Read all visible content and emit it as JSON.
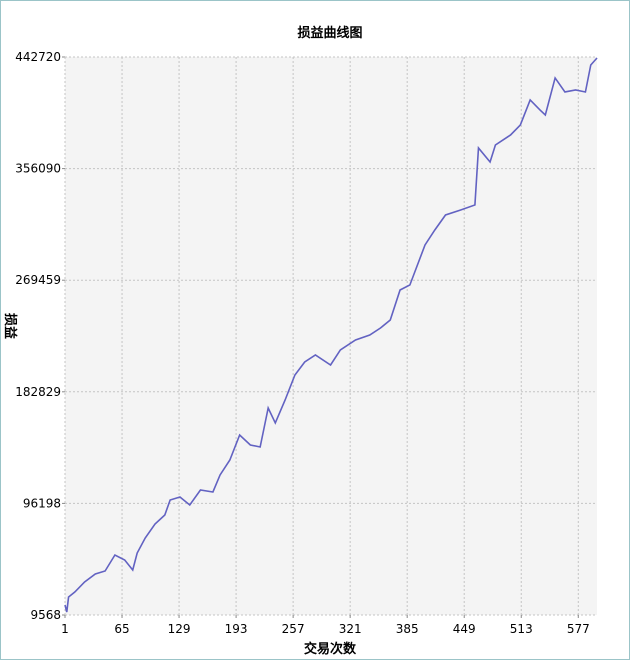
{
  "chart_data": {
    "type": "line",
    "title": "损益曲线图",
    "xlabel": "交易次数",
    "ylabel": "损益",
    "x": [
      1,
      3,
      5,
      12,
      23,
      35,
      46,
      57,
      68,
      77,
      82,
      91,
      102,
      113,
      119,
      130,
      141,
      153,
      167,
      175,
      186,
      197,
      209,
      220,
      229,
      237,
      248,
      259,
      270,
      282,
      299,
      310,
      327,
      343,
      355,
      366,
      377,
      388,
      405,
      416,
      428,
      445,
      461,
      465,
      478,
      484,
      501,
      512,
      523,
      534,
      540,
      551,
      562,
      574,
      585,
      591,
      598
    ],
    "series": [
      {
        "name": "损益",
        "color": "#6262c2",
        "values": [
          17331,
          11897,
          23541,
          27423,
          35186,
          41396,
          43725,
          56146,
          52265,
          44502,
          57699,
          69343,
          80211,
          87198,
          98843,
          101171,
          94961,
          106606,
          105053,
          118250,
          129895,
          149302,
          141539,
          139986,
          170262,
          158618,
          176473,
          195880,
          205972,
          211406,
          203643,
          215288,
          223051,
          226932,
          232366,
          238577,
          261866,
          265747,
          296799,
          308444,
          320088,
          323970,
          327851,
          372100,
          361232,
          374429,
          382192,
          389955,
          409362,
          401599,
          397718,
          426441,
          415573,
          417126,
          415573,
          436533,
          441967
        ]
      }
    ],
    "xlim": [
      1,
      598
    ],
    "ylim": [
      9568,
      442720
    ],
    "xticks": [
      1,
      65,
      129,
      193,
      257,
      321,
      385,
      449,
      513,
      577
    ],
    "yticks": [
      9568,
      96198,
      182829,
      269459,
      356090,
      442720
    ],
    "grid": true
  }
}
